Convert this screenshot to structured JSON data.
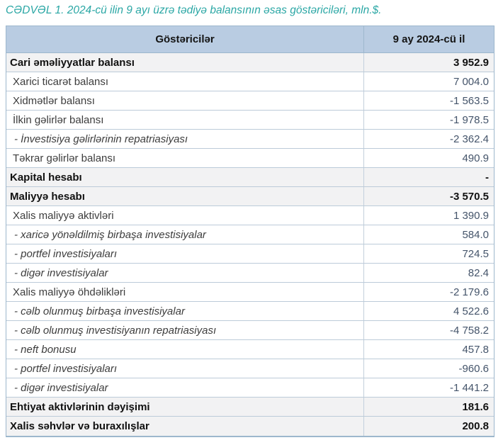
{
  "title": "CƏDVƏL 1. 2024-cü ilin 9 ayı üzrə tədiyə balansının əsas göstəriciləri, mln.$.",
  "colors": {
    "title_text": "#2ba7a5",
    "header_bg": "#b9cce2",
    "section_row_bg": "#f2f2f3",
    "border": "#9db7cd",
    "value_text": "#44546a"
  },
  "table": {
    "headers": {
      "indicator": "Göstəricilər",
      "period": "9 ay 2024-cü il"
    },
    "rows": [
      {
        "label": "Cari əməliyyatlar balansı",
        "value": "3 952.9",
        "style": "section"
      },
      {
        "label": "Xarici ticarət balansı",
        "value": "7 004.0",
        "style": "item"
      },
      {
        "label": "Xidmətlər balansı",
        "value": "-1 563.5",
        "style": "item"
      },
      {
        "label": "İlkin gəlirlər balansı",
        "value": "-1 978.5",
        "style": "item"
      },
      {
        "label": "- İnvestisiya gəlirlərinin repatriasiyası",
        "value": "-2 362.4",
        "style": "subitem"
      },
      {
        "label": "Təkrar gəlirlər balansı",
        "value": "490.9",
        "style": "item"
      },
      {
        "label": "Kapital hesabı",
        "value": "-",
        "style": "section"
      },
      {
        "label": "Maliyyə hesabı",
        "value": "-3 570.5",
        "style": "section"
      },
      {
        "label": "Xalis maliyyə aktivləri",
        "value": "1 390.9",
        "style": "item"
      },
      {
        "label": "- xaricə yönəldilmiş birbaşa investisiyalar",
        "value": "584.0",
        "style": "subitem"
      },
      {
        "label": "- portfel investisiyaları",
        "value": "724.5",
        "style": "subitem"
      },
      {
        "label": "- digər investisiyalar",
        "value": "82.4",
        "style": "subitem"
      },
      {
        "label": "Xalis maliyyə öhdəlikləri",
        "value": "-2 179.6",
        "style": "item"
      },
      {
        "label": "- cəlb olunmuş birbaşa investisiyalar",
        "value": "4 522.6",
        "style": "subitem"
      },
      {
        "label": "- cəlb olunmuş investisiyanın repatriasiyası",
        "value": "-4 758.2",
        "style": "subitem"
      },
      {
        "label": "- neft bonusu",
        "value": "457.8",
        "style": "subitem"
      },
      {
        "label": "- portfel investisiyaları",
        "value": "-960.6",
        "style": "subitem"
      },
      {
        "label": "- digər investisiyalar",
        "value": "-1 441.2",
        "style": "subitem"
      },
      {
        "label": "Ehtiyat aktivlərinin dəyişimi",
        "value": "181.6",
        "style": "section"
      },
      {
        "label": "Xalis səhvlər və buraxılışlar",
        "value": "200.8",
        "style": "section"
      }
    ]
  }
}
